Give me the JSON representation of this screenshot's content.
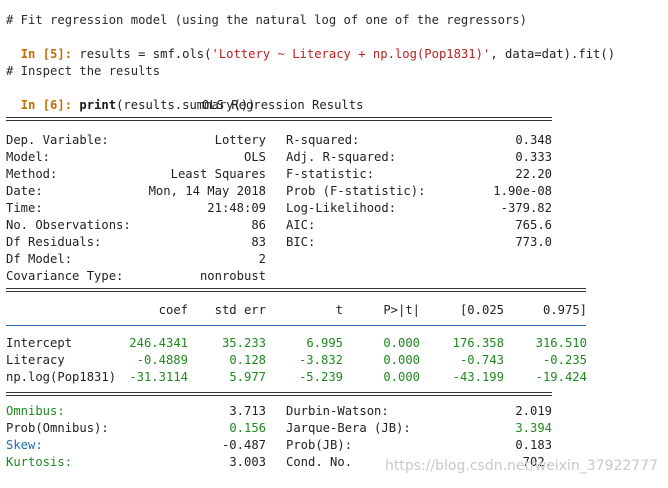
{
  "code": {
    "comment1": "# Fit regression model (using the natural log of one of the regressors)",
    "prompt1": "In [5]:",
    "line1_pre": " results = smf.ols(",
    "line1_str": "'Lottery ~ Literacy + np.log(Pop1831)'",
    "line1_post": ", data=dat).fit()",
    "comment2": "# Inspect the results",
    "prompt2": "In [6]:",
    "line2_kw": "print",
    "line2_post": "(results.summary())"
  },
  "summary": {
    "title": "OLS Regression Results",
    "top_left": [
      {
        "label": "Dep. Variable:",
        "value": "Lottery"
      },
      {
        "label": "Model:",
        "value": "OLS"
      },
      {
        "label": "Method:",
        "value": "Least Squares"
      },
      {
        "label": "Date:",
        "value": "Mon, 14 May 2018"
      },
      {
        "label": "Time:",
        "value": "21:48:09"
      },
      {
        "label": "No. Observations:",
        "value": "86"
      },
      {
        "label": "Df Residuals:",
        "value": "83"
      },
      {
        "label": "Df Model:",
        "value": "2"
      },
      {
        "label": "Covariance Type:",
        "value": "nonrobust"
      }
    ],
    "top_right": [
      {
        "label": "R-squared:",
        "value": "0.348"
      },
      {
        "label": "Adj. R-squared:",
        "value": "0.333"
      },
      {
        "label": "F-statistic:",
        "value": "22.20"
      },
      {
        "label": "Prob (F-statistic):",
        "value": "1.90e-08"
      },
      {
        "label": "Log-Likelihood:",
        "value": "-379.82"
      },
      {
        "label": "AIC:",
        "value": "765.6"
      },
      {
        "label": "BIC:",
        "value": "773.0"
      }
    ],
    "coef_header": [
      "coef",
      "std err",
      "t",
      "P>|t|",
      "[0.025",
      "0.975]"
    ],
    "coef_rows": [
      {
        "name": "Intercept",
        "vals": [
          "246.4341",
          "35.233",
          "6.995",
          "0.000",
          "176.358",
          "316.510"
        ]
      },
      {
        "name": "Literacy",
        "vals": [
          "-0.4889",
          "0.128",
          "-3.832",
          "0.000",
          "-0.743",
          "-0.235"
        ]
      },
      {
        "name": "np.log(Pop1831)",
        "vals": [
          "-31.3114",
          "5.977",
          "-5.239",
          "0.000",
          "-43.199",
          "-19.424"
        ]
      }
    ],
    "bottom_left": [
      {
        "label": "Omnibus:",
        "value": "3.713"
      },
      {
        "label": "Prob(Omnibus):",
        "value": "0.156"
      },
      {
        "label": "Skew:",
        "value": "-0.487"
      },
      {
        "label": "Kurtosis:",
        "value": "3.003"
      }
    ],
    "bottom_right": [
      {
        "label": "Durbin-Watson:",
        "value": "2.019"
      },
      {
        "label": "Jarque-Bera (JB):",
        "value": "3.394"
      },
      {
        "label": "Prob(JB):",
        "value": "0.183"
      },
      {
        "label": "Cond. No.",
        "value": "702."
      }
    ]
  },
  "watermark": "https://blog.csdn.net/weixin_37922777",
  "colors": {
    "prompt": "#c46f00",
    "string": "#ba2121",
    "number_green": "#1f8a1f",
    "number_blue": "#1f6fb0"
  }
}
